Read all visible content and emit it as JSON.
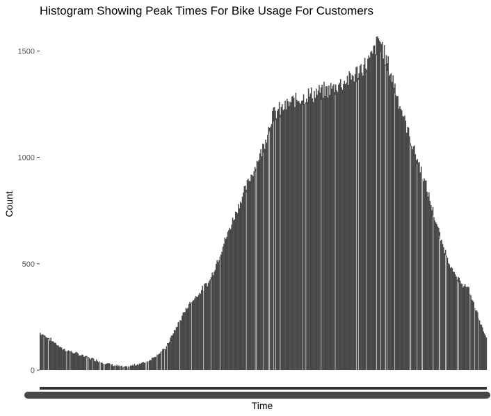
{
  "colors": {
    "background": "#ffffff",
    "bar": "#474747",
    "text": "#000000",
    "tick_text": "#4d4d4d",
    "tick_mark": "#333333"
  },
  "chart_data": {
    "type": "bar",
    "title": "Histogram Showing Peak Times For Bike Usage For Customers",
    "xlabel": "Time",
    "ylabel": "Count",
    "ylim": [
      0,
      1560
    ],
    "y_ticks": [
      0,
      500,
      1000,
      1500
    ],
    "y_tick_labels": [
      "0",
      "500",
      "1000",
      "1500"
    ],
    "grid": false,
    "legend": "none",
    "x_tick_labels_note": "overplotted, illegible",
    "anchor_points": [
      [
        0.0,
        175
      ],
      [
        0.02,
        150
      ],
      [
        0.05,
        100
      ],
      [
        0.1,
        65
      ],
      [
        0.15,
        30
      ],
      [
        0.19,
        12
      ],
      [
        0.24,
        40
      ],
      [
        0.28,
        100
      ],
      [
        0.33,
        300
      ],
      [
        0.38,
        420
      ],
      [
        0.44,
        750
      ],
      [
        0.5,
        1050
      ],
      [
        0.52,
        1200
      ],
      [
        0.58,
        1280
      ],
      [
        0.65,
        1320
      ],
      [
        0.7,
        1380
      ],
      [
        0.74,
        1460
      ],
      [
        0.76,
        1560
      ],
      [
        0.79,
        1370
      ],
      [
        0.82,
        1150
      ],
      [
        0.86,
        900
      ],
      [
        0.9,
        600
      ],
      [
        0.93,
        440
      ],
      [
        0.96,
        380
      ],
      [
        1.0,
        150
      ]
    ]
  }
}
